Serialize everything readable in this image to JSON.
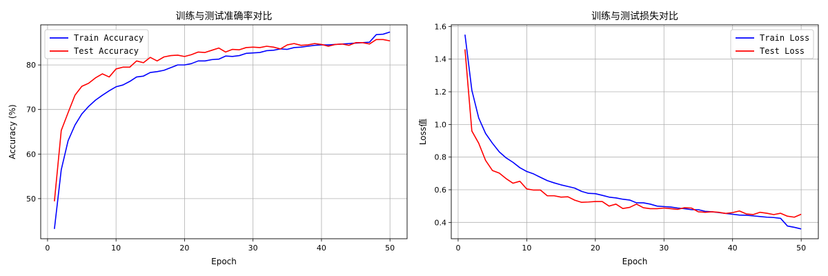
{
  "chart_data": [
    {
      "type": "line",
      "title": "训练与测试准确率对比",
      "xlabel": "Epoch",
      "ylabel": "Accuracy (%)",
      "xlim": [
        -1,
        52.5
      ],
      "ylim": [
        41,
        89
      ],
      "xticks": [
        0,
        10,
        20,
        30,
        40,
        50
      ],
      "yticks": [
        50,
        60,
        70,
        80
      ],
      "grid": true,
      "legend_position": "top-left",
      "x": [
        1,
        2,
        3,
        4,
        5,
        6,
        7,
        8,
        9,
        10,
        11,
        12,
        13,
        14,
        15,
        16,
        17,
        18,
        19,
        20,
        21,
        22,
        23,
        24,
        25,
        26,
        27,
        28,
        29,
        30,
        31,
        32,
        33,
        34,
        35,
        36,
        37,
        38,
        39,
        40,
        41,
        42,
        43,
        44,
        45,
        46,
        47,
        48,
        49,
        50
      ],
      "series": [
        {
          "name": "Train Accuracy",
          "color": "#0000ff",
          "values": [
            43.2,
            56.5,
            63.0,
            66.5,
            69.0,
            70.7,
            72.1,
            73.2,
            74.2,
            75.1,
            75.5,
            76.3,
            77.3,
            77.5,
            78.3,
            78.5,
            78.8,
            79.4,
            80.0,
            80.0,
            80.3,
            80.9,
            80.9,
            81.2,
            81.3,
            82.0,
            81.9,
            82.1,
            82.6,
            82.7,
            82.8,
            83.2,
            83.3,
            83.6,
            83.5,
            83.9,
            84.0,
            84.2,
            84.4,
            84.5,
            84.5,
            84.6,
            84.7,
            84.8,
            84.9,
            85.0,
            85.1,
            86.8,
            86.9,
            87.4
          ]
        },
        {
          "name": "Test Accuracy",
          "color": "#ff0000",
          "values": [
            49.4,
            65.3,
            69.3,
            73.2,
            75.2,
            75.9,
            77.1,
            78.0,
            77.3,
            79.1,
            79.5,
            79.5,
            80.9,
            80.5,
            81.7,
            80.9,
            81.8,
            82.1,
            82.2,
            81.9,
            82.3,
            82.9,
            82.8,
            83.3,
            83.8,
            82.9,
            83.5,
            83.4,
            83.9,
            84.0,
            83.9,
            84.2,
            84.0,
            83.6,
            84.5,
            84.8,
            84.4,
            84.5,
            84.8,
            84.6,
            84.2,
            84.6,
            84.7,
            84.4,
            85.0,
            85.0,
            84.7,
            85.7,
            85.7,
            85.4
          ]
        }
      ]
    },
    {
      "type": "line",
      "title": "训练与测试损失对比",
      "xlabel": "Epoch",
      "ylabel": "Loss值",
      "xlim": [
        -1,
        52.5
      ],
      "ylim": [
        0.3,
        1.61
      ],
      "xticks": [
        0,
        10,
        20,
        30,
        40,
        50
      ],
      "yticks": [
        0.4,
        0.6,
        0.8,
        1.0,
        1.2,
        1.4,
        1.6
      ],
      "ytick_labels": [
        "0.4",
        "0.6",
        "0.8",
        "1.0",
        "1.2",
        "1.4",
        "1.6"
      ],
      "grid": true,
      "legend_position": "top-right",
      "x": [
        1,
        2,
        3,
        4,
        5,
        6,
        7,
        8,
        9,
        10,
        11,
        12,
        13,
        14,
        15,
        16,
        17,
        18,
        19,
        20,
        21,
        22,
        23,
        24,
        25,
        26,
        27,
        28,
        29,
        30,
        31,
        32,
        33,
        34,
        35,
        36,
        37,
        38,
        39,
        40,
        41,
        42,
        43,
        44,
        45,
        46,
        47,
        48,
        49,
        50
      ],
      "series": [
        {
          "name": "Train Loss",
          "color": "#0000ff",
          "values": [
            1.55,
            1.21,
            1.04,
            0.945,
            0.885,
            0.832,
            0.795,
            0.768,
            0.735,
            0.712,
            0.697,
            0.676,
            0.656,
            0.642,
            0.63,
            0.62,
            0.61,
            0.59,
            0.578,
            0.576,
            0.566,
            0.555,
            0.55,
            0.542,
            0.537,
            0.52,
            0.52,
            0.512,
            0.5,
            0.497,
            0.494,
            0.488,
            0.484,
            0.478,
            0.478,
            0.468,
            0.465,
            0.46,
            0.455,
            0.45,
            0.445,
            0.444,
            0.44,
            0.436,
            0.432,
            0.43,
            0.425,
            0.378,
            0.37,
            0.36
          ]
        },
        {
          "name": "Test Loss",
          "color": "#ff0000",
          "values": [
            1.46,
            0.96,
            0.885,
            0.78,
            0.718,
            0.702,
            0.668,
            0.64,
            0.652,
            0.605,
            0.598,
            0.598,
            0.563,
            0.563,
            0.555,
            0.557,
            0.536,
            0.523,
            0.525,
            0.528,
            0.528,
            0.5,
            0.512,
            0.485,
            0.492,
            0.512,
            0.49,
            0.484,
            0.484,
            0.488,
            0.484,
            0.48,
            0.49,
            0.488,
            0.465,
            0.462,
            0.465,
            0.462,
            0.455,
            0.46,
            0.47,
            0.452,
            0.448,
            0.462,
            0.456,
            0.448,
            0.456,
            0.438,
            0.432,
            0.45
          ]
        }
      ]
    }
  ]
}
